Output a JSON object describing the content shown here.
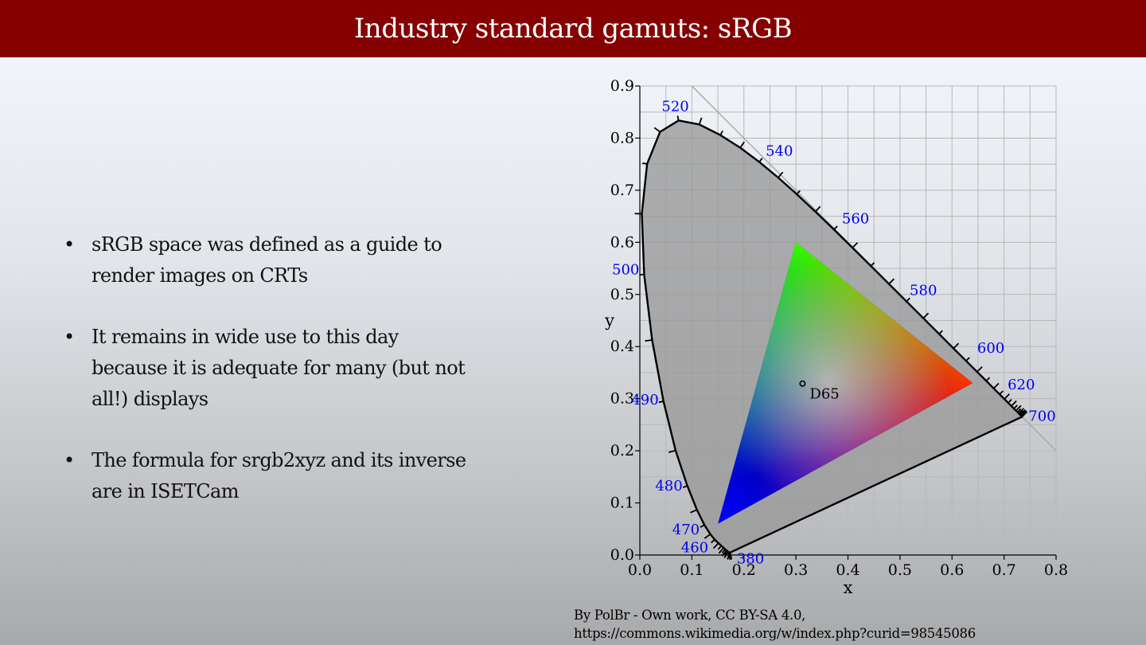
{
  "slide": {
    "title": "Industry standard gamuts: sRGB",
    "bullets": [
      "sRGB space was defined as a guide to render images on CRTs",
      "It remains in wide use to this day because it is adequate for many (but not all!) displays",
      "The formula for srgb2xyz and its inverse are in ISETCam"
    ],
    "bullet_glyph": "•",
    "caption_line1": "By PolBr - Own work, CC BY-SA 4.0,",
    "caption_line2": "https://commons.wikimedia.org/w/index.php?curid=98545086"
  },
  "colors": {
    "title_bar": "#850000",
    "wavelength_label": "#0000ee",
    "gamut_fill": "#999999"
  },
  "chart_data": {
    "type": "scatter",
    "xlabel": "x",
    "ylabel": "y",
    "xlim": [
      0,
      0.8
    ],
    "ylim": [
      0,
      0.9
    ],
    "grid": true,
    "x_ticks": [
      "0.0",
      "0.1",
      "0.2",
      "0.3",
      "0.4",
      "0.5",
      "0.6",
      "0.7",
      "0.8"
    ],
    "y_ticks": [
      "0.0",
      "0.1",
      "0.2",
      "0.3",
      "0.4",
      "0.5",
      "0.6",
      "0.7",
      "0.8",
      "0.9"
    ],
    "spectral_locus": [
      [
        0.1741,
        0.005
      ],
      [
        0.1738,
        0.0049
      ],
      [
        0.1736,
        0.0049
      ],
      [
        0.1733,
        0.0048
      ],
      [
        0.173,
        0.0048
      ],
      [
        0.1726,
        0.0048
      ],
      [
        0.1721,
        0.0048
      ],
      [
        0.1714,
        0.0051
      ],
      [
        0.1703,
        0.0058
      ],
      [
        0.1689,
        0.0069
      ],
      [
        0.1669,
        0.0086
      ],
      [
        0.1644,
        0.0109
      ],
      [
        0.1611,
        0.0138
      ],
      [
        0.1566,
        0.0177
      ],
      [
        0.151,
        0.0227
      ],
      [
        0.144,
        0.0297
      ],
      [
        0.1355,
        0.0399
      ],
      [
        0.1241,
        0.0578
      ],
      [
        0.1096,
        0.0868
      ],
      [
        0.0913,
        0.1327
      ],
      [
        0.0687,
        0.2007
      ],
      [
        0.0454,
        0.295
      ],
      [
        0.0235,
        0.4127
      ],
      [
        0.0082,
        0.5384
      ],
      [
        0.0039,
        0.6548
      ],
      [
        0.0139,
        0.7502
      ],
      [
        0.0389,
        0.812
      ],
      [
        0.0743,
        0.8338
      ],
      [
        0.1142,
        0.8262
      ],
      [
        0.1547,
        0.8059
      ],
      [
        0.1929,
        0.7816
      ],
      [
        0.2296,
        0.7543
      ],
      [
        0.2658,
        0.7243
      ],
      [
        0.3016,
        0.6923
      ],
      [
        0.3373,
        0.6589
      ],
      [
        0.3731,
        0.6245
      ],
      [
        0.4087,
        0.5896
      ],
      [
        0.4441,
        0.5547
      ],
      [
        0.4788,
        0.5202
      ],
      [
        0.5125,
        0.4866
      ],
      [
        0.5448,
        0.4544
      ],
      [
        0.5752,
        0.4242
      ],
      [
        0.6029,
        0.3965
      ],
      [
        0.627,
        0.3725
      ],
      [
        0.6482,
        0.3514
      ],
      [
        0.6658,
        0.334
      ],
      [
        0.6801,
        0.3197
      ],
      [
        0.6915,
        0.3083
      ],
      [
        0.7006,
        0.2993
      ],
      [
        0.7079,
        0.292
      ],
      [
        0.714,
        0.2859
      ],
      [
        0.719,
        0.2809
      ],
      [
        0.723,
        0.277
      ],
      [
        0.726,
        0.274
      ],
      [
        0.7283,
        0.2717
      ],
      [
        0.73,
        0.27
      ],
      [
        0.7311,
        0.2689
      ],
      [
        0.732,
        0.268
      ],
      [
        0.7327,
        0.2673
      ],
      [
        0.7334,
        0.2666
      ],
      [
        0.734,
        0.266
      ],
      [
        0.7344,
        0.2656
      ],
      [
        0.7346,
        0.2654
      ],
      [
        0.7347,
        0.2653
      ]
    ],
    "srgb_primaries": {
      "red": [
        0.64,
        0.33
      ],
      "green": [
        0.3,
        0.6
      ],
      "blue": [
        0.15,
        0.06
      ]
    },
    "white_point": {
      "label": "D65",
      "x": 0.3127,
      "y": 0.329
    },
    "wavelength_labels": [
      {
        "label": "520",
        "x": 0.0743,
        "y": 0.8338
      },
      {
        "label": "540",
        "x": 0.2296,
        "y": 0.7543
      },
      {
        "label": "560",
        "x": 0.3731,
        "y": 0.6245
      },
      {
        "label": "580",
        "x": 0.5125,
        "y": 0.4866
      },
      {
        "label": "600",
        "x": 0.627,
        "y": 0.3725
      },
      {
        "label": "620",
        "x": 0.6915,
        "y": 0.3083
      },
      {
        "label": "700",
        "x": 0.7347,
        "y": 0.2653
      },
      {
        "label": "500",
        "x": 0.0082,
        "y": 0.5384
      },
      {
        "label": "490",
        "x": 0.0454,
        "y": 0.295
      },
      {
        "label": "480",
        "x": 0.0913,
        "y": 0.1327
      },
      {
        "label": "470",
        "x": 0.1241,
        "y": 0.0578
      },
      {
        "label": "460",
        "x": 0.144,
        "y": 0.0297
      },
      {
        "label": "380",
        "x": 0.1741,
        "y": 0.005
      }
    ]
  }
}
